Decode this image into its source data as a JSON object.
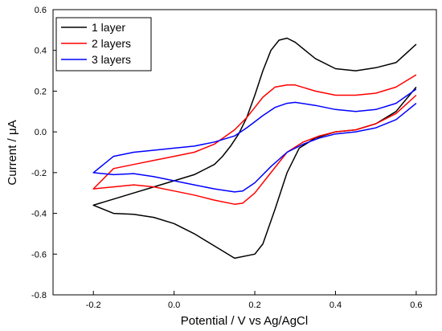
{
  "chart_data": {
    "type": "line",
    "title": "",
    "xlabel": "Potential / V vs Ag/AgCl",
    "ylabel": "Current / μA",
    "xlim": [
      -0.3,
      0.65
    ],
    "ylim": [
      -0.8,
      0.6
    ],
    "xticks": [
      -0.2,
      0.0,
      0.2,
      0.4,
      0.6
    ],
    "xtick_labels": [
      "-0.2",
      "0.0",
      "0.2",
      "0.4",
      "0.6"
    ],
    "yticks": [
      -0.8,
      -0.6,
      -0.4,
      -0.2,
      0.0,
      0.2,
      0.4,
      0.6
    ],
    "ytick_labels": [
      "-0.8",
      "-0.6",
      "-0.4",
      "-0.2",
      "0.0",
      "0.2",
      "0.4",
      "0.6"
    ],
    "grid": false,
    "legend_position": "top-left",
    "series": [
      {
        "name": "1 layer",
        "color": "#000000",
        "x": [
          0.6,
          0.55,
          0.5,
          0.45,
          0.4,
          0.35,
          0.3,
          0.28,
          0.26,
          0.24,
          0.22,
          0.2,
          0.18,
          0.16,
          0.14,
          0.12,
          0.1,
          0.05,
          0.0,
          -0.05,
          -0.1,
          -0.15,
          -0.2,
          -0.15,
          -0.1,
          -0.05,
          0.0,
          0.05,
          0.1,
          0.15,
          0.2,
          0.22,
          0.25,
          0.28,
          0.31,
          0.35,
          0.4,
          0.45,
          0.5,
          0.55,
          0.6
        ],
        "y": [
          0.43,
          0.34,
          0.315,
          0.3,
          0.31,
          0.36,
          0.44,
          0.46,
          0.45,
          0.4,
          0.3,
          0.18,
          0.07,
          -0.01,
          -0.07,
          -0.12,
          -0.16,
          -0.21,
          -0.24,
          -0.27,
          -0.3,
          -0.33,
          -0.36,
          -0.4,
          -0.405,
          -0.42,
          -0.45,
          -0.5,
          -0.56,
          -0.62,
          -0.6,
          -0.55,
          -0.38,
          -0.2,
          -0.08,
          -0.03,
          0.0,
          0.01,
          0.04,
          0.1,
          0.22
        ]
      },
      {
        "name": "2 layers",
        "color": "#ff0000",
        "x": [
          0.6,
          0.55,
          0.5,
          0.45,
          0.4,
          0.35,
          0.3,
          0.28,
          0.25,
          0.22,
          0.2,
          0.18,
          0.15,
          0.1,
          0.05,
          0.0,
          -0.05,
          -0.1,
          -0.15,
          -0.2,
          -0.15,
          -0.1,
          -0.05,
          0.0,
          0.05,
          0.1,
          0.15,
          0.17,
          0.2,
          0.24,
          0.28,
          0.32,
          0.36,
          0.4,
          0.45,
          0.5,
          0.55,
          0.6
        ],
        "y": [
          0.28,
          0.22,
          0.19,
          0.18,
          0.18,
          0.2,
          0.23,
          0.23,
          0.22,
          0.17,
          0.12,
          0.07,
          0.01,
          -0.06,
          -0.1,
          -0.12,
          -0.14,
          -0.16,
          -0.18,
          -0.28,
          -0.27,
          -0.26,
          -0.27,
          -0.29,
          -0.31,
          -0.335,
          -0.355,
          -0.35,
          -0.3,
          -0.2,
          -0.1,
          -0.05,
          -0.02,
          0.0,
          0.01,
          0.04,
          0.09,
          0.18
        ]
      },
      {
        "name": "3 layers",
        "color": "#0000ff",
        "x": [
          0.6,
          0.55,
          0.5,
          0.45,
          0.4,
          0.35,
          0.3,
          0.28,
          0.25,
          0.22,
          0.2,
          0.18,
          0.15,
          0.1,
          0.05,
          0.0,
          -0.05,
          -0.1,
          -0.15,
          -0.2,
          -0.15,
          -0.1,
          -0.05,
          0.0,
          0.05,
          0.1,
          0.15,
          0.17,
          0.2,
          0.24,
          0.28,
          0.32,
          0.36,
          0.4,
          0.45,
          0.5,
          0.55,
          0.6
        ],
        "y": [
          0.21,
          0.14,
          0.11,
          0.1,
          0.11,
          0.13,
          0.145,
          0.14,
          0.12,
          0.08,
          0.05,
          0.02,
          -0.02,
          -0.05,
          -0.07,
          -0.08,
          -0.09,
          -0.1,
          -0.12,
          -0.2,
          -0.21,
          -0.205,
          -0.22,
          -0.24,
          -0.26,
          -0.28,
          -0.295,
          -0.29,
          -0.25,
          -0.17,
          -0.1,
          -0.06,
          -0.03,
          -0.01,
          0.0,
          0.02,
          0.06,
          0.14
        ]
      }
    ]
  }
}
